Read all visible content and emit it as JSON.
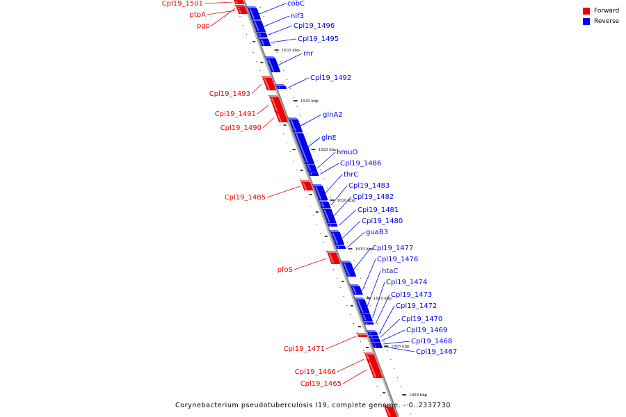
{
  "legend": {
    "forward_label": "Forward",
    "reverse_label": "Reverse",
    "forward_color": "#ee0000",
    "reverse_color": "#0000ee"
  },
  "footer": "Corynebacterium pseudotuberculosis I19, complete genome. - 0..2337730",
  "axis": {
    "tick_labels": [
      "1635 kbp",
      "1630 kbp",
      "1625 kbp",
      "1620 kbp",
      "1615 kbp",
      "1610 kbp",
      "1605 kbp",
      "1600 kbp"
    ]
  },
  "forward_genes": [
    "Cpl19_1501",
    "ptpA",
    "pgp",
    "Cpl19_1493",
    "Cpl19_1491",
    "Cpl19_1490",
    "Cpl19_1485",
    "pfoS",
    "Cpl19_1471",
    "Cpl19_1466",
    "Cpl19_1465"
  ],
  "reverse_genes": [
    "cobC",
    "nif3",
    "Cpl19_1496",
    "Cpl19_1495",
    "rnr",
    "Cpl19_1492",
    "glnA2",
    "glnE",
    "hmuO",
    "Cpl19_1486",
    "thrC",
    "Cpl19_1483",
    "Cpl19_1482",
    "Cpl19_1481",
    "Cpl19_1480",
    "guaB3",
    "Cpl19_1477",
    "Cpl19_1476",
    "htaC",
    "Cpl19_1474",
    "Cpl19_1473",
    "Cpl19_1472",
    "Cpl19_1470",
    "Cpl19_1469",
    "Cpl19_1468",
    "Cpl19_1467"
  ]
}
